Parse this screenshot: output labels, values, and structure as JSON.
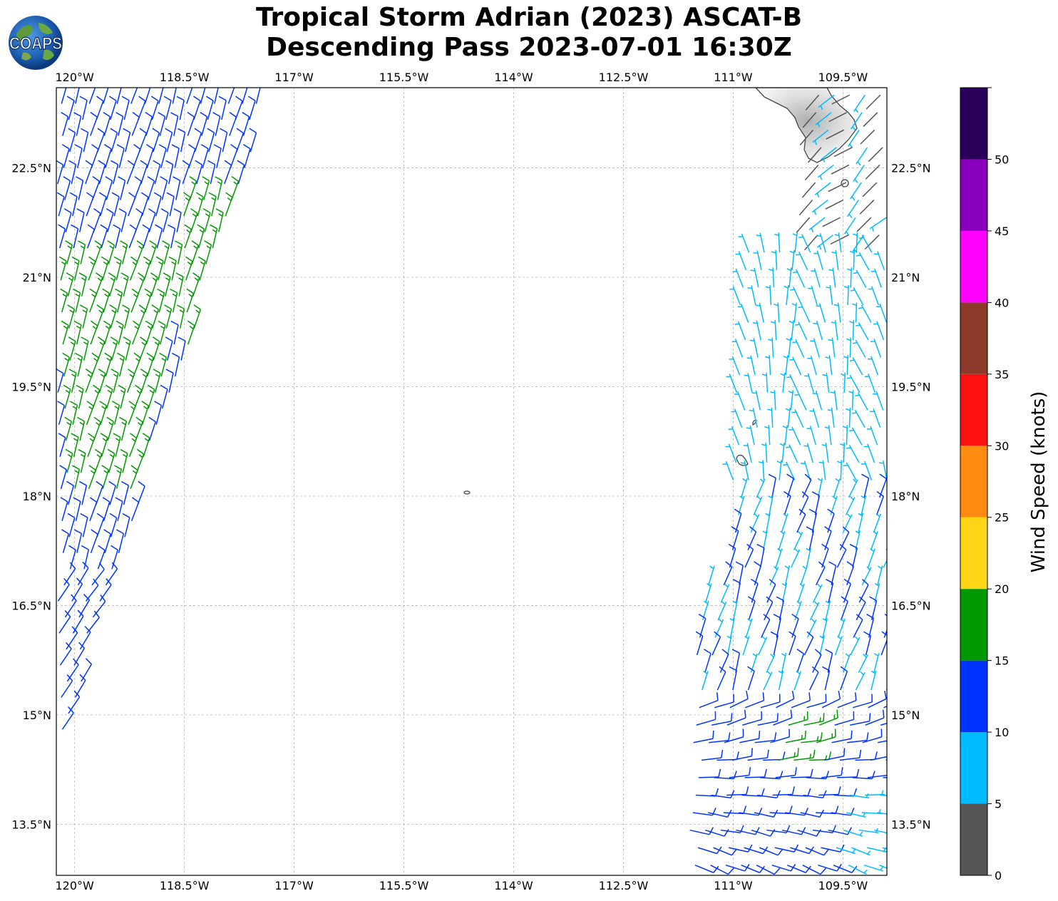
{
  "title": {
    "line1": "Tropical Storm Adrian (2023) ASCAT-B",
    "line2": "Descending Pass 2023-07-01 16:30Z"
  },
  "logo": {
    "text": "COAPS",
    "icon": "globe-logo-icon"
  },
  "map": {
    "lon_range": [
      -120.25,
      -108.9
    ],
    "lat_range": [
      12.8,
      23.6
    ],
    "grid": true,
    "lon_ticks": [
      {
        "value": -120,
        "label": "120°W"
      },
      {
        "value": -118.5,
        "label": "118.5°W"
      },
      {
        "value": -117,
        "label": "117°W"
      },
      {
        "value": -115.5,
        "label": "115.5°W"
      },
      {
        "value": -114,
        "label": "114°W"
      },
      {
        "value": -112.5,
        "label": "112.5°W"
      },
      {
        "value": -111,
        "label": "111°W"
      },
      {
        "value": -109.5,
        "label": "109.5°W"
      }
    ],
    "lat_ticks": [
      {
        "value": 22.5,
        "label": "22.5°N"
      },
      {
        "value": 21,
        "label": "21°N"
      },
      {
        "value": 19.5,
        "label": "19.5°N"
      },
      {
        "value": 18,
        "label": "18°N"
      },
      {
        "value": 16.5,
        "label": "16.5°N"
      },
      {
        "value": 15,
        "label": "15°N"
      },
      {
        "value": 13.5,
        "label": "13.5°N"
      }
    ],
    "swaths": [
      {
        "name": "west",
        "lon_start": -120.25,
        "lon_end": -117.3,
        "lat_top": 23.6,
        "lat_bottom": 13.5,
        "drift_per_deg_lat": 0.2
      },
      {
        "name": "east",
        "lon_start": -111.1,
        "lon_end": -108.9,
        "lat_top": 23.6,
        "lat_bottom": 12.8,
        "drift_per_deg_lat": 0.12
      }
    ]
  },
  "colorbar": {
    "label": "Wind Speed (knots)",
    "ticks": [
      "0",
      "5",
      "10",
      "15",
      "20",
      "25",
      "30",
      "35",
      "40",
      "45",
      "50"
    ],
    "bands": [
      {
        "min": 0,
        "max": 5,
        "color": "#555555"
      },
      {
        "min": 5,
        "max": 10,
        "color": "#00bbff"
      },
      {
        "min": 10,
        "max": 15,
        "color": "#0033ff"
      },
      {
        "min": 15,
        "max": 20,
        "color": "#009900"
      },
      {
        "min": 20,
        "max": 25,
        "color": "#ffd515"
      },
      {
        "min": 25,
        "max": 30,
        "color": "#ff8c10"
      },
      {
        "min": 30,
        "max": 35,
        "color": "#ff1010"
      },
      {
        "min": 35,
        "max": 40,
        "color": "#8b3a2a"
      },
      {
        "min": 40,
        "max": 45,
        "color": "#ff00ff"
      },
      {
        "min": 45,
        "max": 50,
        "color": "#8800bb"
      },
      {
        "min": 50,
        "max": 55,
        "color": "#2a005a"
      }
    ]
  }
}
